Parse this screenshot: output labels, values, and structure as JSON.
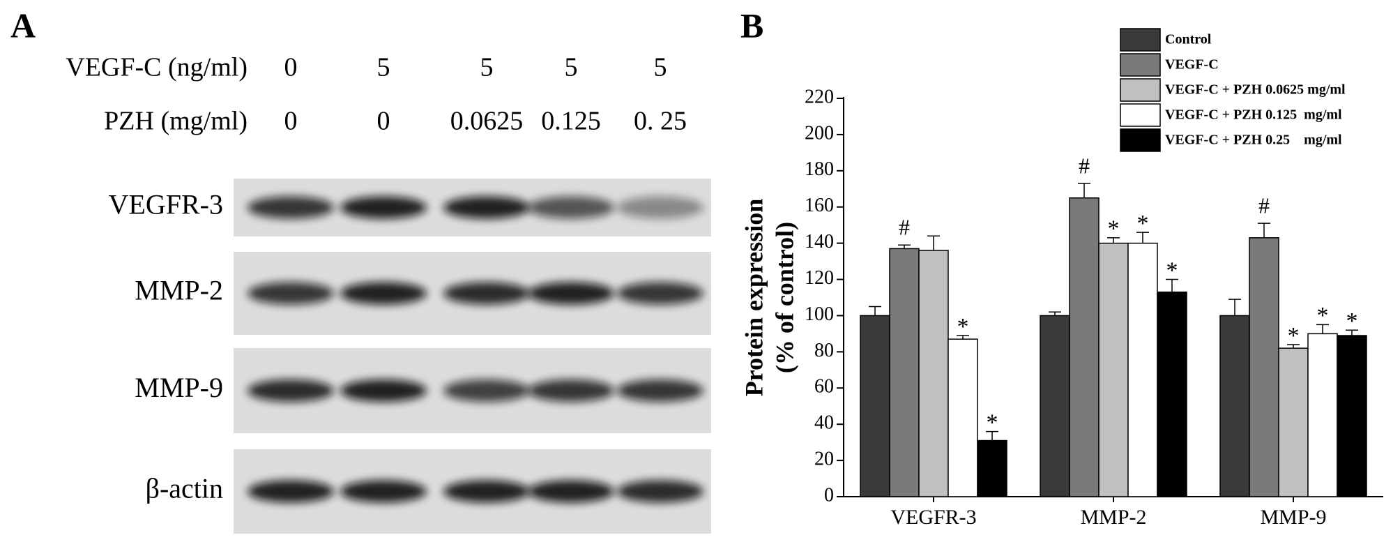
{
  "blot": {
    "panel_label": "A",
    "rows": [
      {
        "label": "VEGF-C (ng/ml)",
        "values": [
          "0",
          "5",
          "5",
          "5",
          "5"
        ]
      },
      {
        "label": "PZH (mg/ml)",
        "values": [
          "0",
          "0",
          "0.0625",
          "0.125",
          "0. 25"
        ]
      }
    ],
    "bands": [
      "VEGFR-3",
      "MMP-2",
      "MMP-9",
      "β-actin"
    ]
  },
  "chart_data": {
    "type": "bar",
    "panel_label": "B",
    "ylabel": [
      "Protein expression",
      "(% of control)"
    ],
    "categories": [
      "VEGFR-3",
      "MMP-2",
      "MMP-9"
    ],
    "ylim": [
      0,
      220
    ],
    "yticks": [
      0,
      20,
      40,
      60,
      80,
      100,
      120,
      140,
      160,
      180,
      200,
      220
    ],
    "legend": "top-right",
    "series": [
      {
        "name": "Control",
        "color": "#3a3a3a",
        "values": [
          100,
          100,
          100
        ],
        "errors": [
          5,
          2,
          9
        ],
        "annotations": [
          null,
          null,
          null
        ]
      },
      {
        "name": "VEGF-C",
        "color": "#7a7a7a",
        "values": [
          137,
          165,
          143
        ],
        "errors": [
          2,
          8,
          8
        ],
        "annotations": [
          "#",
          "#",
          "#"
        ]
      },
      {
        "name": "VEGF-C + PZH 0.0625 mg/ml",
        "color": "#c0c0c0",
        "values": [
          136,
          140,
          82
        ],
        "errors": [
          8,
          3,
          2
        ],
        "annotations": [
          null,
          "*",
          "*"
        ]
      },
      {
        "name": "VEGF-C + PZH 0.125  mg/ml",
        "color": "#ffffff",
        "values": [
          87,
          140,
          90
        ],
        "errors": [
          2,
          6,
          5
        ],
        "annotations": [
          "*",
          "*",
          "*"
        ]
      },
      {
        "name": "VEGF-C + PZH 0.25    mg/ml",
        "color": "#000000",
        "values": [
          31,
          113,
          89
        ],
        "errors": [
          5,
          7,
          3
        ],
        "annotations": [
          "*",
          "*",
          "*"
        ]
      }
    ]
  }
}
